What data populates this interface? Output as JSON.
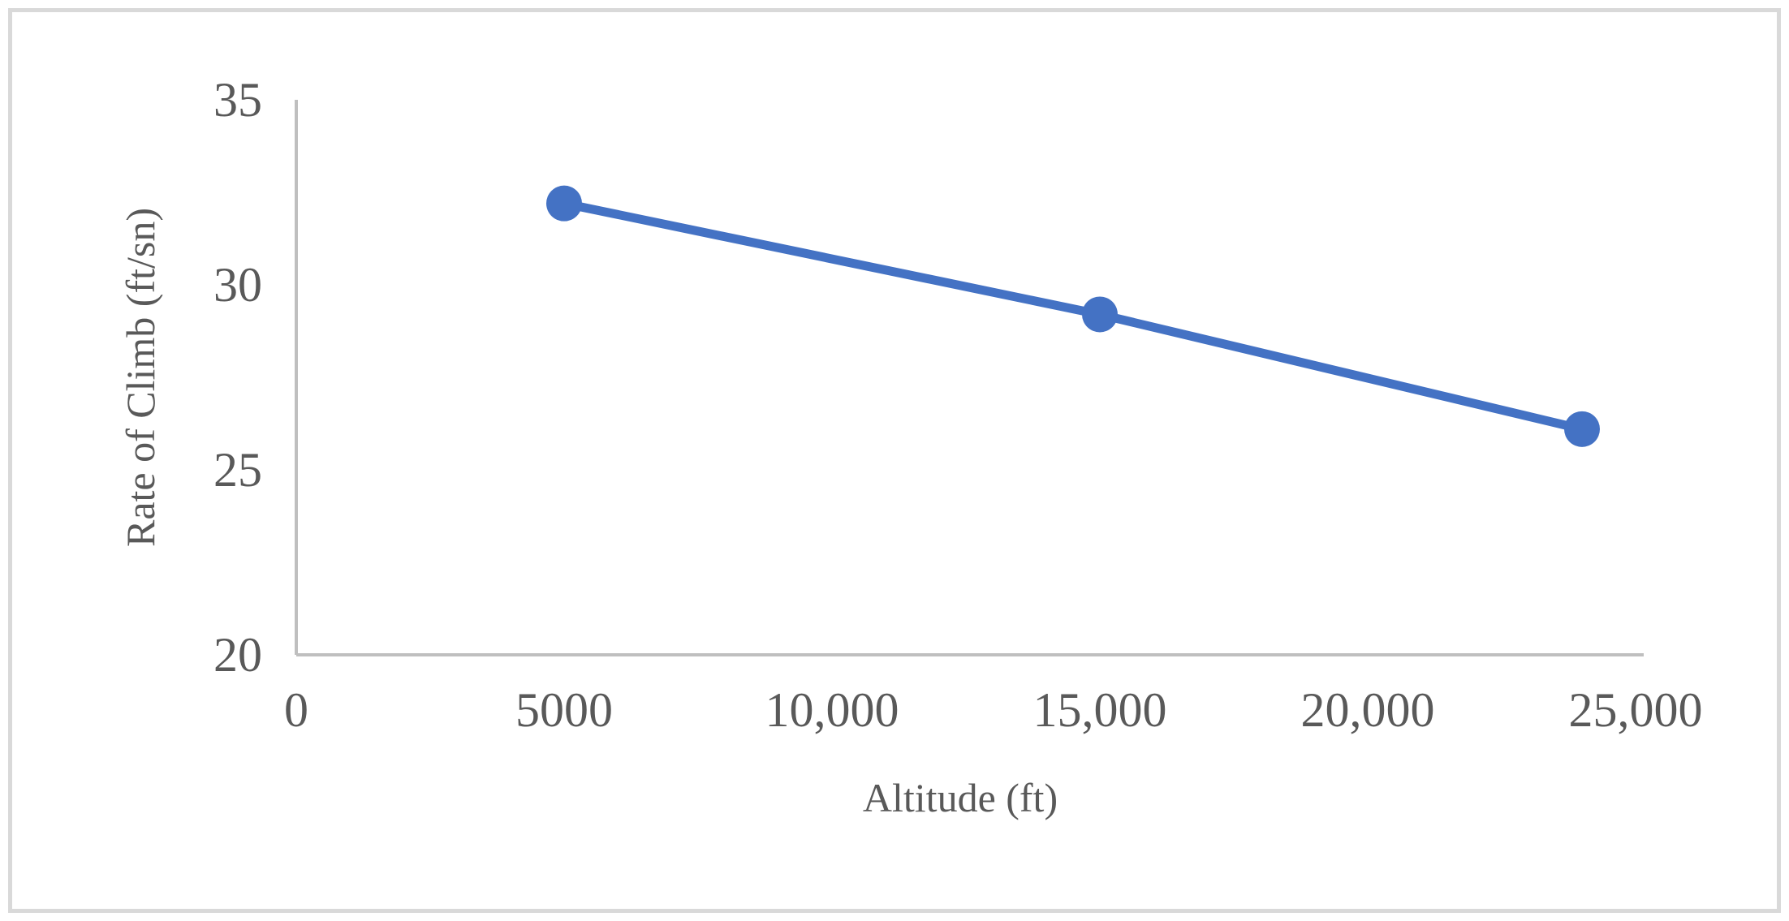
{
  "chart_data": {
    "type": "line",
    "title": "",
    "xlabel": "Altitude (ft)",
    "ylabel": "Rate of Climb (ft/sn)",
    "xlim": [
      0,
      25000
    ],
    "ylim": [
      20,
      35
    ],
    "x_ticks": [
      0,
      5000,
      10000,
      15000,
      20000,
      25000
    ],
    "x_tick_labels": [
      "0",
      "5000",
      "10,000",
      "15,000",
      "20,000",
      "25,000"
    ],
    "y_ticks": [
      20,
      25,
      30,
      35
    ],
    "y_tick_labels": [
      "20",
      "25",
      "30",
      "35"
    ],
    "grid": false,
    "legend": "none",
    "series": [
      {
        "x": [
          5000,
          15000,
          24000
        ],
        "y": [
          32.2,
          29.2,
          26.1
        ]
      }
    ],
    "colors": {
      "series": "#4472c4",
      "axis": "#bfbfbf",
      "text": "#595959"
    }
  }
}
